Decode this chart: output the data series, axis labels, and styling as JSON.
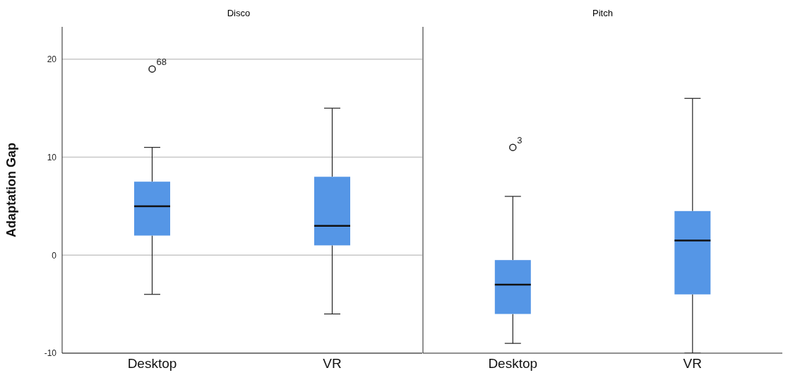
{
  "chart_data": [
    {
      "type": "box",
      "title": "Disco",
      "ylabel": "Adaptation Gap",
      "categories": [
        "Desktop",
        "VR"
      ],
      "color": "#5596e6",
      "ylim": [
        -10,
        23.3
      ],
      "yticks": [
        -10,
        0,
        10,
        20
      ],
      "grid": "y",
      "boxes": [
        {
          "low": -4,
          "q1": 2,
          "median": 5,
          "q3": 7.5,
          "high": 11,
          "outliers": [
            19
          ]
        },
        {
          "low": -6,
          "q1": 1,
          "median": 3,
          "q3": 8,
          "high": 15
        }
      ],
      "annotations": [
        "68"
      ]
    },
    {
      "type": "box",
      "title": "Pitch",
      "categories": [
        "Desktop",
        "VR"
      ],
      "color": "#5596e6",
      "ylim": [
        -10,
        23.3
      ],
      "yticks": [
        -10,
        0,
        10,
        20
      ],
      "grid": "y",
      "tick_labels": "x",
      "boxes": [
        {
          "low": -9,
          "q1": -6,
          "median": -3,
          "q3": -0.5,
          "high": 6,
          "outliers": [
            11
          ]
        },
        {
          "low": -10,
          "q1": -4,
          "median": 1.5,
          "q3": 4.5,
          "high": 16
        }
      ],
      "annotations": [
        "3"
      ]
    }
  ]
}
